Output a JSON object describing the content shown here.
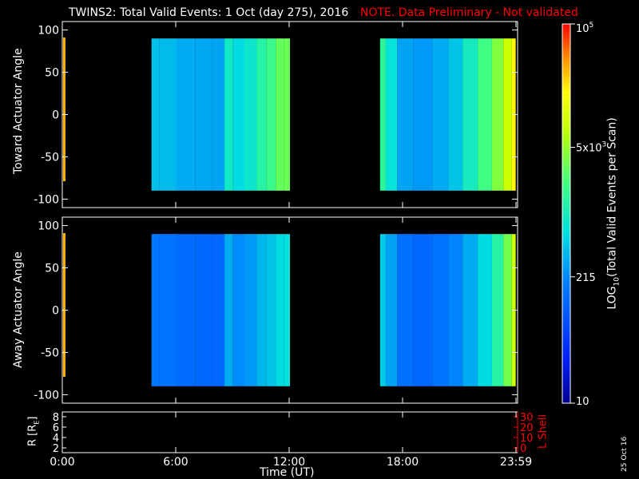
{
  "header": {
    "title": "TWINS2: Total Valid Events:  1 Oct (day 275), 2016",
    "note": "NOTE. Data Preliminary - Not validated",
    "note_color": "#ff0000"
  },
  "colorbar": {
    "label_main": "LOG",
    "label_sub": "10",
    "label_rest": "(Total Valid Events per Scan)",
    "ticks": [
      {
        "base": "10",
        "exp": "5",
        "value": 100000
      },
      {
        "base": "5x10",
        "exp": "3",
        "value": 5000
      },
      {
        "base": "215",
        "exp": "",
        "value": 215
      },
      {
        "base": "10",
        "exp": "",
        "value": 10
      }
    ]
  },
  "panels": {
    "top_ylabel": "Toward Actuator Angle",
    "bottom_ylabel": "Away Actuator Angle",
    "ytick_labels": [
      "100",
      "50",
      "0",
      "-50",
      "-100"
    ]
  },
  "bottom_panel": {
    "left_label": "R [R",
    "left_label_sub": "E",
    "left_label_end": "]",
    "left_ticks": [
      "8",
      "6",
      "4",
      "2"
    ],
    "right_label": "L Shell",
    "right_ticks": [
      "30",
      "20",
      "10",
      "0"
    ],
    "right_color": "#ff0000"
  },
  "xaxis": {
    "title": "Time (UT)",
    "tick_labels": [
      "0:00",
      "6:00",
      "12:00",
      "18:00",
      "23:59"
    ]
  },
  "footer": {
    "date_stamp": "25 Oct 16"
  },
  "chart_data": [
    {
      "type": "heatmap",
      "ylabel": "Toward Actuator Angle",
      "xlabel": "Time (UT)",
      "xlim": [
        0,
        24
      ],
      "ylim": [
        -110,
        110
      ],
      "data_extent_y": [
        -90,
        90
      ],
      "color_scale": "log10",
      "zlim": [
        10,
        100000
      ],
      "data_blocks": [
        {
          "start": "4:40",
          "end": "12:00"
        },
        {
          "start": "16:45",
          "end": "23:59"
        }
      ],
      "time_hours": [
        4.7,
        5.5,
        6.5,
        7.5,
        8.3,
        8.8,
        9.2,
        10.0,
        10.5,
        11.0,
        11.5,
        11.9,
        16.8,
        17.3,
        18.0,
        19.0,
        20.0,
        20.7,
        21.5,
        22.3,
        23.0,
        23.5,
        23.9
      ],
      "column_counts": [
        420,
        400,
        330,
        310,
        300,
        900,
        600,
        800,
        1300,
        1800,
        3000,
        3200,
        1500,
        700,
        300,
        260,
        330,
        450,
        950,
        2000,
        4000,
        9000,
        20000
      ]
    },
    {
      "type": "heatmap",
      "ylabel": "Away Actuator Angle",
      "xlabel": "Time (UT)",
      "xlim": [
        0,
        24
      ],
      "ylim": [
        -110,
        110
      ],
      "data_extent_y": [
        -90,
        90
      ],
      "color_scale": "log10",
      "zlim": [
        10,
        100000
      ],
      "data_blocks": [
        {
          "start": "4:40",
          "end": "12:00"
        },
        {
          "start": "16:45",
          "end": "23:59"
        }
      ],
      "time_hours": [
        4.7,
        5.5,
        6.5,
        7.5,
        8.3,
        8.8,
        9.2,
        10.0,
        10.5,
        11.0,
        11.5,
        11.9,
        16.8,
        17.3,
        18.0,
        19.0,
        20.0,
        20.7,
        21.5,
        22.3,
        23.0,
        23.5,
        23.9
      ],
      "column_counts": [
        160,
        150,
        130,
        120,
        120,
        330,
        220,
        260,
        380,
        450,
        600,
        650,
        500,
        300,
        140,
        120,
        150,
        200,
        330,
        600,
        1300,
        3500,
        9000
      ]
    }
  ]
}
